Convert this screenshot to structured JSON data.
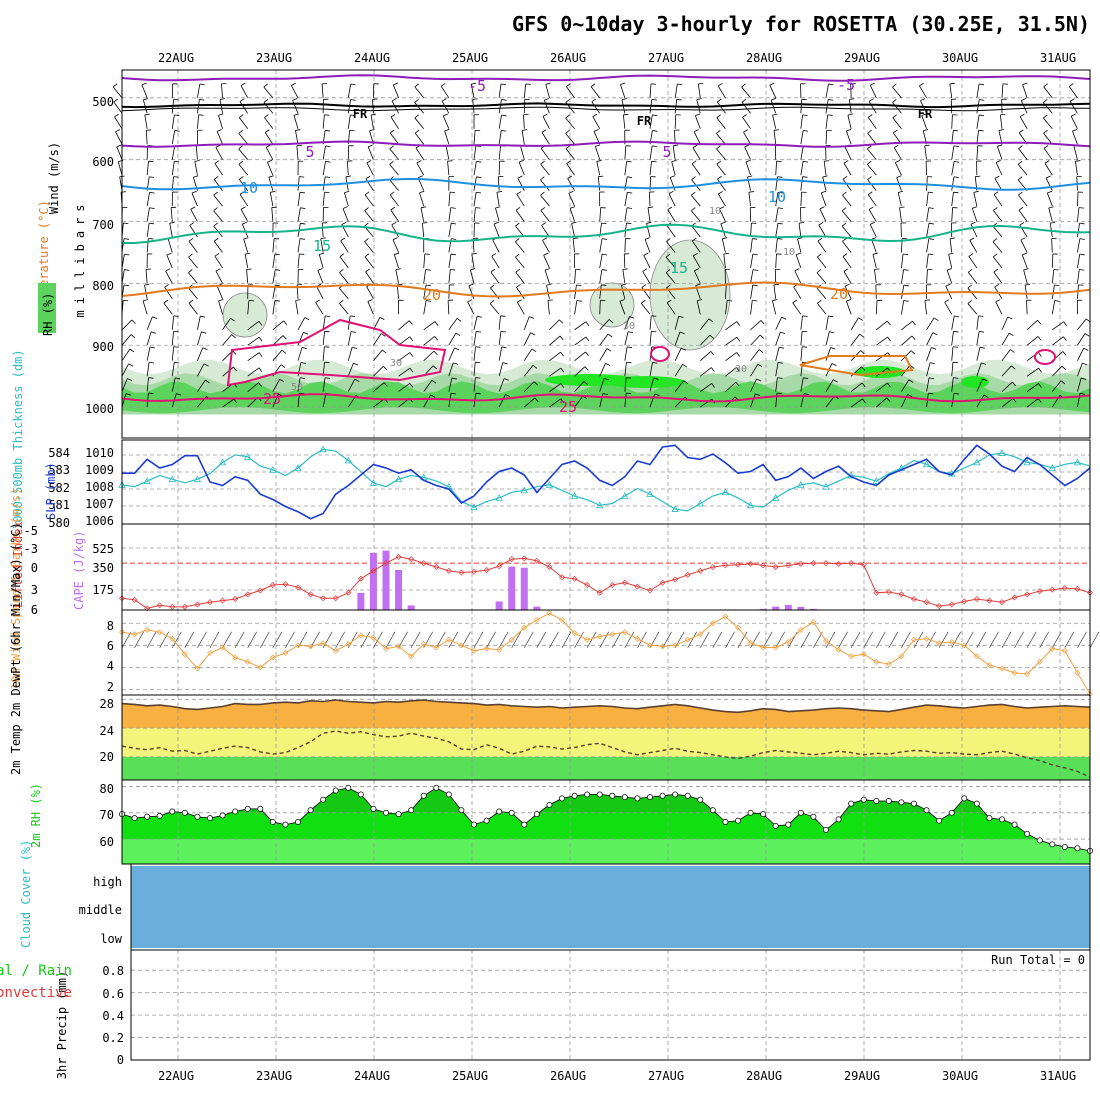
{
  "title": "GFS 0~10day 3-hourly for ROSETTA (30.25E, 31.5N)",
  "date_labels": [
    "22AUG",
    "23AUG",
    "24AUG",
    "25AUG",
    "26AUG",
    "27AUG",
    "28AUG",
    "29AUG",
    "30AUG",
    "31AUG"
  ],
  "colors": {
    "purple": "#8e1cb8",
    "black": "#000000",
    "blue": "#1f8fe0",
    "teal": "#16b38a",
    "orange": "#e27a1e",
    "magenta": "#e01074",
    "rh_light": "#d6ead6",
    "rh_mid": "#a8d9a8",
    "rh_green": "#5cd35c",
    "rh_bright": "#22e622",
    "slp": "#1a3bd1",
    "thick": "#2bbdc4",
    "lifted": "#e03a3a",
    "cape": "#c070f0",
    "wind": "#f0a040",
    "temp_fill": "#f8b040",
    "dew_fill": "#f4f47a",
    "low_fill": "#58e058",
    "rh2m_dark": "#14c814",
    "rh2m_light": "#5cf05c",
    "cloud": "#6aaedb"
  },
  "chart_data": [
    {
      "id": "upper_air",
      "type": "contour",
      "ylabel_parts": [
        "Wind (m/s)",
        "Temperature (°C)",
        "RH (%)"
      ],
      "ylabel_units": "millibars",
      "yticks": [
        500,
        600,
        700,
        800,
        900,
        1000
      ],
      "ylim": [
        455,
        1050
      ],
      "contour_labels": {
        "t_minus5": [
          "-5",
          "-5"
        ],
        "freezing": [
          "FR",
          "FR",
          "FR"
        ],
        "t5": [
          "5",
          "5"
        ],
        "t10": [
          "10",
          "10"
        ],
        "t15": [
          "15",
          "15"
        ],
        "t20": [
          "20",
          "20"
        ],
        "t25": [
          "25",
          "25"
        ],
        "rh": [
          "10",
          "10",
          "30",
          "30",
          "30",
          "50"
        ]
      }
    },
    {
      "id": "slp_thickness",
      "type": "line",
      "ylabel_left": "1000-500mb Thickness (dm)",
      "ylabel_right": "SLP (mb)",
      "thickness_ticks": [
        580,
        581,
        582,
        583,
        584
      ],
      "slp_ticks": [
        1006,
        1007,
        1008,
        1009,
        1010
      ],
      "thickness_range": [
        580,
        584.5
      ],
      "slp_range": [
        1005.8,
        1010.6
      ],
      "slp": [
        1008.7,
        1008.7,
        1009.5,
        1009.0,
        1009.2,
        1009.7,
        1009.7,
        1008.2,
        1008.0,
        1008.5,
        1008.3,
        1007.5,
        1007.2,
        1006.8,
        1006.5,
        1006.1,
        1006.4,
        1007.5,
        1008.0,
        1008.6,
        1009.2,
        1009.0,
        1008.7,
        1008.9,
        1008.3,
        1008.0,
        1007.8,
        1007.0,
        1007.4,
        1008.2,
        1008.8,
        1009.0,
        1008.6,
        1007.6,
        1008.4,
        1009.2,
        1009.4,
        1009.0,
        1008.3,
        1008.0,
        1008.5,
        1009.4,
        1009.2,
        1010.2,
        1010.3,
        1009.6,
        1009.5,
        1009.8,
        1009.3,
        1008.7,
        1008.8,
        1009.2,
        1008.3,
        1008.5,
        1009.0,
        1008.4,
        1008.8,
        1009.1,
        1008.5,
        1008.2,
        1008.0,
        1008.6,
        1008.9,
        1009.2,
        1009.5,
        1008.8,
        1008.6,
        1009.5,
        1010.3,
        1009.8,
        1009.1,
        1008.8,
        1009.6,
        1009.2,
        1008.6,
        1008.0,
        1008.4,
        1009.0
      ],
      "thickness": [
        582.1,
        582.0,
        582.3,
        582.6,
        582.4,
        582.2,
        582.4,
        582.7,
        583.3,
        583.7,
        583.6,
        583.1,
        582.9,
        582.6,
        583.0,
        583.6,
        584.0,
        583.9,
        583.4,
        582.8,
        582.2,
        582.0,
        582.4,
        582.6,
        582.5,
        582.3,
        582.0,
        581.2,
        580.9,
        581.2,
        581.4,
        581.7,
        581.8,
        582.0,
        582.1,
        581.8,
        581.5,
        581.3,
        581.0,
        581.1,
        581.5,
        581.9,
        581.6,
        581.2,
        580.8,
        580.7,
        581.1,
        581.5,
        581.7,
        581.4,
        581.0,
        580.9,
        581.4,
        581.8,
        582.1,
        582.2,
        582.0,
        582.3,
        582.6,
        582.5,
        582.3,
        582.7,
        583.0,
        583.4,
        583.2,
        582.8,
        582.7,
        583.0,
        583.3,
        583.7,
        583.8,
        583.6,
        583.3,
        583.2,
        583.0,
        583.2,
        583.3,
        583.1
      ]
    },
    {
      "id": "stability",
      "type": "line+bar",
      "ylabel_left": "Lifted Index",
      "ylabel_right": "CAPE (J/kg)",
      "li_ticks": [
        "-5",
        "-3",
        "0",
        "3",
        "6"
      ],
      "cape_ticks": [
        "525",
        "350",
        "175"
      ],
      "li_range": [
        -5,
        6
      ],
      "cape_range": [
        0,
        700
      ],
      "lifted_index": [
        4.5,
        4.7,
        5.8,
        5.4,
        5.6,
        5.6,
        5.3,
        5.0,
        4.8,
        4.6,
        4.0,
        3.5,
        2.8,
        2.7,
        3.1,
        4.0,
        4.5,
        4.5,
        3.8,
        2.0,
        1.0,
        0.0,
        -0.8,
        -0.5,
        0.0,
        0.5,
        1.0,
        1.2,
        1.1,
        0.9,
        0.4,
        -0.5,
        -0.6,
        -0.3,
        0.5,
        1.8,
        2.0,
        2.8,
        3.8,
        2.8,
        2.5,
        3.0,
        3.5,
        2.5,
        2.1,
        1.5,
        1.0,
        0.5,
        0.3,
        0.2,
        0.1,
        0.3,
        0.5,
        0.3,
        0.1,
        0.0,
        0.0,
        0.1,
        0.0,
        0.2,
        3.8,
        3.7,
        4.0,
        4.6,
        5.0,
        5.5,
        5.3,
        4.9,
        4.6,
        4.8,
        5.0,
        4.4,
        4.0,
        3.6,
        3.4,
        3.2,
        3.3,
        3.8
      ],
      "cape": [
        0,
        0,
        0,
        0,
        0,
        0,
        0,
        0,
        0,
        0,
        0,
        0,
        0,
        0,
        0,
        0,
        0,
        0,
        0,
        150,
        500,
        520,
        350,
        40,
        0,
        0,
        0,
        0,
        0,
        0,
        75,
        380,
        370,
        30,
        0,
        0,
        0,
        0,
        0,
        0,
        0,
        0,
        0,
        0,
        0,
        0,
        0,
        0,
        0,
        0,
        0,
        10,
        30,
        45,
        28,
        10,
        0,
        0,
        0,
        0,
        0,
        0,
        0,
        0,
        0,
        0,
        0,
        0,
        0,
        0,
        0,
        0,
        0,
        0,
        0,
        0,
        0,
        0
      ]
    },
    {
      "id": "wind",
      "type": "line",
      "ylabel": "10m Wind Speed & Barbs (m/s)",
      "yticks": [
        2,
        4,
        6,
        8
      ],
      "ylim": [
        1.5,
        9.2
      ],
      "speed": [
        7.2,
        7.0,
        7.4,
        7.2,
        6.6,
        5.2,
        3.9,
        5.3,
        5.8,
        4.9,
        4.5,
        4.0,
        4.9,
        5.3,
        6.0,
        5.9,
        6.2,
        5.5,
        6.1,
        6.9,
        6.7,
        5.7,
        5.9,
        5.0,
        6.1,
        5.8,
        6.5,
        6.0,
        5.5,
        5.7,
        5.6,
        6.5,
        7.6,
        8.3,
        8.9,
        8.3,
        7.1,
        6.5,
        6.8,
        7.0,
        7.2,
        6.6,
        6.0,
        5.9,
        6.0,
        6.5,
        7.0,
        8.0,
        8.6,
        7.6,
        6.2,
        5.8,
        5.8,
        6.3,
        7.4,
        8.1,
        6.4,
        5.6,
        5.0,
        5.2,
        4.5,
        4.3,
        5.0,
        6.5,
        6.6,
        6.2,
        6.3,
        6.0,
        5.0,
        4.2,
        3.9,
        3.5,
        3.4,
        4.5,
        5.7,
        5.5,
        3.5,
        1.6
      ]
    },
    {
      "id": "temperature",
      "type": "area",
      "ylabel": "2m Temp 2m DewPt (6hr Min/Max) (°C)",
      "yticks": [
        20,
        24,
        28
      ],
      "ylim": [
        16.8,
        28.6
      ],
      "temp": [
        27.4,
        27.3,
        27.1,
        27.2,
        27.0,
        26.7,
        26.6,
        26.8,
        27.0,
        27.4,
        27.3,
        27.3,
        27.5,
        27.6,
        27.5,
        27.8,
        27.7,
        27.9,
        27.7,
        27.6,
        27.5,
        27.7,
        27.6,
        27.8,
        27.9,
        27.7,
        27.6,
        27.5,
        27.4,
        27.2,
        27.3,
        27.1,
        27.0,
        26.9,
        27.0,
        26.8,
        26.9,
        27.0,
        27.1,
        27.0,
        26.8,
        26.7,
        26.9,
        27.1,
        27.3,
        27.1,
        26.8,
        26.5,
        26.3,
        26.2,
        26.4,
        26.7,
        26.6,
        26.3,
        26.4,
        26.5,
        26.7,
        26.8,
        26.7,
        26.5,
        26.4,
        26.3,
        26.6,
        26.9,
        27.2,
        27.1,
        26.9,
        26.8,
        27.0,
        27.2,
        27.3,
        27.0,
        26.8,
        26.9,
        27.0,
        27.1,
        27.0,
        26.9
      ],
      "dewpoint": [
        21.5,
        21.2,
        21.0,
        21.3,
        20.8,
        20.9,
        20.4,
        20.8,
        21.2,
        21.5,
        21.3,
        20.7,
        20.4,
        20.6,
        21.3,
        22.1,
        23.3,
        23.6,
        23.3,
        23.5,
        23.1,
        22.8,
        22.9,
        23.3,
        22.9,
        22.6,
        22.1,
        21.1,
        21.0,
        21.7,
        21.2,
        20.4,
        20.8,
        21.5,
        21.4,
        21.1,
        21.3,
        21.7,
        21.9,
        21.3,
        20.7,
        20.3,
        20.6,
        20.9,
        21.2,
        20.8,
        20.6,
        20.3,
        20.0,
        19.8,
        20.1,
        20.6,
        20.9,
        20.7,
        20.5,
        20.3,
        20.5,
        20.8,
        20.6,
        20.3,
        20.5,
        20.4,
        20.7,
        20.9,
        20.8,
        20.5,
        20.6,
        20.4,
        20.3,
        20.6,
        20.8,
        20.4,
        19.9,
        19.5,
        18.9,
        18.5,
        18.0,
        17.2
      ]
    },
    {
      "id": "rh2m",
      "type": "area",
      "ylabel": "2m RH (%)",
      "yticks": [
        60,
        70,
        80
      ],
      "ylim": [
        50.5,
        82.5
      ],
      "rh": [
        69.5,
        68.0,
        68.5,
        68.8,
        70.5,
        70.0,
        68.5,
        68.0,
        69.0,
        70.5,
        71.5,
        71.5,
        66.5,
        65.5,
        66.5,
        71.0,
        75.0,
        78.5,
        79.5,
        77.0,
        71.5,
        70.0,
        69.5,
        71.0,
        76.5,
        79.5,
        77.0,
        71.0,
        65.5,
        67.0,
        70.5,
        70.0,
        65.5,
        69.5,
        73.0,
        75.5,
        76.5,
        77.0,
        77.0,
        76.5,
        76.0,
        75.5,
        76.0,
        76.5,
        77.0,
        76.5,
        75.0,
        71.0,
        66.5,
        67.0,
        70.0,
        69.5,
        65.0,
        65.5,
        70.0,
        68.5,
        63.5,
        67.5,
        73.5,
        75.0,
        74.5,
        74.5,
        74.0,
        73.5,
        71.0,
        67.0,
        70.0,
        75.5,
        73.5,
        68.0,
        67.5,
        65.5,
        62.0,
        59.5,
        58.0,
        57.0,
        56.5,
        55.5
      ]
    },
    {
      "id": "cloud",
      "type": "area",
      "ylabel": "Cloud Cover (%)",
      "levels": [
        "high",
        "middle",
        "low"
      ]
    },
    {
      "id": "precip",
      "type": "bar",
      "ylabel_left": "Total / Rain",
      "ylabel_left2": "Convective",
      "ylabel": "3hr Precip (mm)",
      "yticks": [
        "0",
        "0.2",
        "0.4",
        "0.6",
        "0.8"
      ],
      "ylim": [
        0,
        0.98
      ],
      "run_total": "Run Total = 0",
      "values": []
    }
  ]
}
